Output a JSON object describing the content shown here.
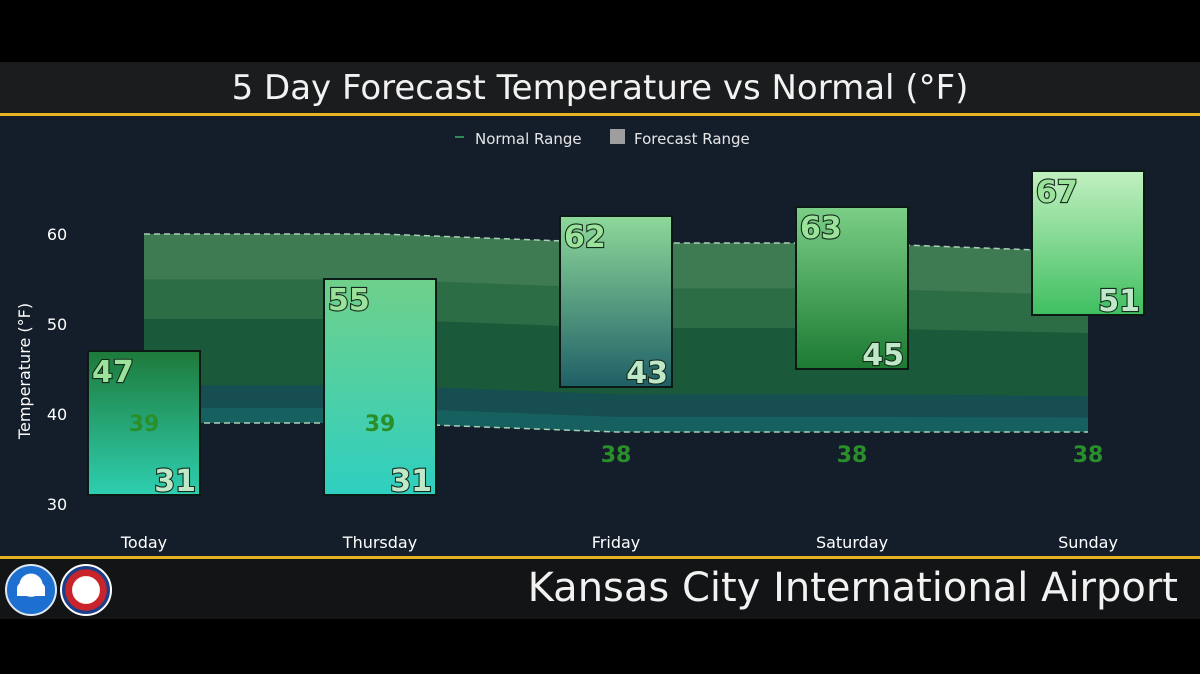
{
  "header": {
    "title": "5 Day Forecast Temperature vs Normal (°F)"
  },
  "footer": {
    "location": "Kansas City International Airport"
  },
  "chart_data": {
    "type": "bar",
    "title": "5 Day Forecast Temperature vs Normal (°F)",
    "ylabel": "Temperature (°F)",
    "xlabel": "",
    "ylim": [
      30,
      67
    ],
    "yticks": [
      30,
      40,
      50,
      60
    ],
    "legend": {
      "placement": "top-center",
      "entries": [
        {
          "name": "Normal Range",
          "color": "#2e8b57"
        },
        {
          "name": "Forecast Range",
          "color": "#9e9e9e"
        }
      ]
    },
    "categories": [
      "Today",
      "Thursday",
      "Friday",
      "Saturday",
      "Sunday"
    ],
    "series": [
      {
        "name": "Forecast Range",
        "high": [
          47,
          55,
          62,
          63,
          67
        ],
        "low": [
          31,
          31,
          43,
          45,
          51
        ]
      },
      {
        "name": "Normal Range",
        "high": [
          60,
          60,
          59,
          59,
          58
        ],
        "low": [
          39,
          39,
          38,
          38,
          38
        ]
      }
    ],
    "normal_low_labels": [
      39,
      39,
      38,
      38,
      38
    ],
    "colors": {
      "background": "#141e2b",
      "accent": "#e6b422",
      "band_outer": "#3e7a52",
      "band_mid": "#2d6d46",
      "band_inner": "#1a5a3a",
      "band_low": "#166060"
    }
  }
}
